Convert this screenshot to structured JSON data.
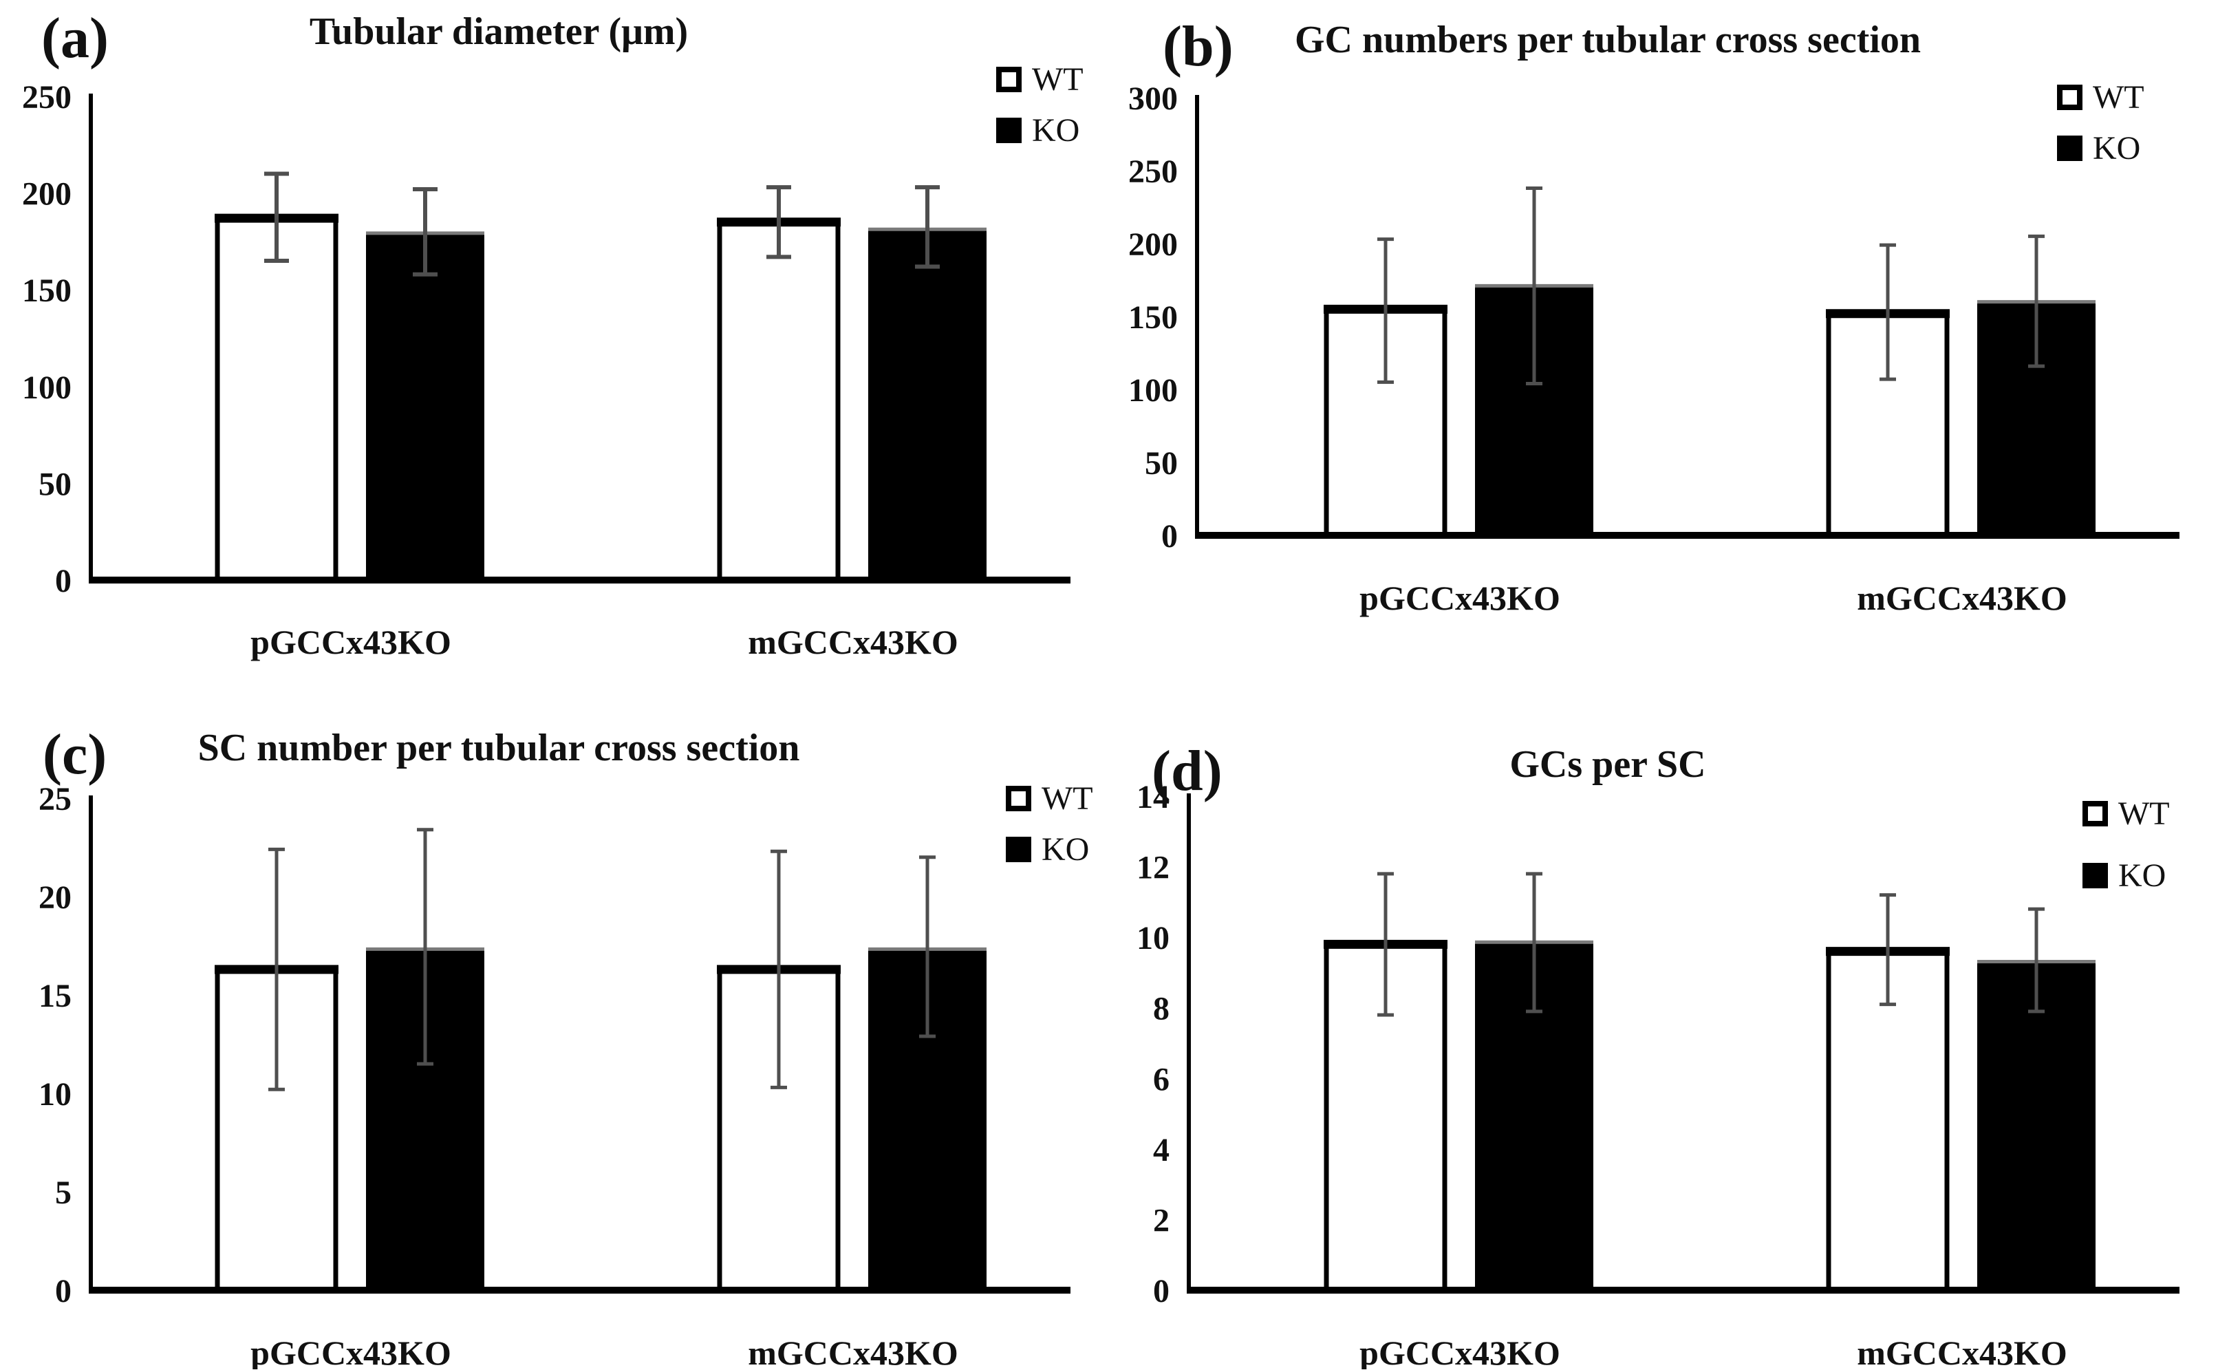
{
  "figure": {
    "description": "Four-panel bar chart figure comparing WT and KO groups in pGCCx43KO and mGCCx43KO testis morphometry",
    "colors": {
      "wt_bar_fill": "#ffffff",
      "ko_bar_fill": "#000000",
      "bar_outline": "#000000",
      "error_bar": "#4f4f4f",
      "ko_bar_top_edge": "#7a7a7a",
      "background": "#ffffff",
      "text": "#111111"
    }
  },
  "chart_data": [
    {
      "type": "bar",
      "panel_letter": "(a)",
      "title": "Tubular diameter (μm)",
      "legend": {
        "wt": "WT",
        "ko": "KO"
      },
      "legend_position": "top-right",
      "grid": false,
      "xlabel": "",
      "ylabel": "",
      "categories": [
        "pGCCx43KO",
        "mGCCx43KO"
      ],
      "series": [
        {
          "name": "WT",
          "style": "open",
          "values": [
            187,
            185
          ],
          "error_low": [
            165,
            167
          ],
          "error_high": [
            210,
            203
          ]
        },
        {
          "name": "KO",
          "style": "filled",
          "values": [
            180,
            182
          ],
          "error_low": [
            158,
            162
          ],
          "error_high": [
            202,
            203
          ]
        }
      ],
      "ylim": [
        0,
        250
      ],
      "yticks": [
        0,
        50,
        100,
        150,
        200,
        250
      ]
    },
    {
      "type": "bar",
      "panel_letter": "(b)",
      "title": "GC numbers per tubular cross section",
      "legend": {
        "wt": "WT",
        "ko": "KO"
      },
      "legend_position": "top-right",
      "grid": false,
      "xlabel": "",
      "ylabel": "",
      "categories": [
        "pGCCx43KO",
        "mGCCx43KO"
      ],
      "series": [
        {
          "name": "WT",
          "style": "open",
          "values": [
            155,
            152
          ],
          "error_low": [
            105,
            107
          ],
          "error_high": [
            203,
            199
          ]
        },
        {
          "name": "KO",
          "style": "filled",
          "values": [
            172,
            161
          ],
          "error_low": [
            104,
            116
          ],
          "error_high": [
            238,
            205
          ]
        }
      ],
      "ylim": [
        0,
        300
      ],
      "yticks": [
        0,
        50,
        100,
        150,
        200,
        250,
        300
      ]
    },
    {
      "type": "bar",
      "panel_letter": "(c)",
      "title": "SC number per tubular cross section",
      "legend": {
        "wt": "WT",
        "ko": "KO"
      },
      "legend_position": "top-right",
      "grid": false,
      "xlabel": "",
      "ylabel": "",
      "categories": [
        "pGCCx43KO",
        "mGCCx43KO"
      ],
      "series": [
        {
          "name": "WT",
          "style": "open",
          "values": [
            16.3,
            16.3
          ],
          "error_low": [
            10.2,
            10.3
          ],
          "error_high": [
            22.4,
            22.3
          ]
        },
        {
          "name": "KO",
          "style": "filled",
          "values": [
            17.4,
            17.4
          ],
          "error_low": [
            11.5,
            12.9
          ],
          "error_high": [
            23.4,
            22.0
          ]
        }
      ],
      "ylim": [
        0,
        25
      ],
      "yticks": [
        0,
        5,
        10,
        15,
        20,
        25
      ]
    },
    {
      "type": "bar",
      "panel_letter": "(d)",
      "title": "GCs per SC",
      "legend": {
        "wt": "WT",
        "ko": "KO"
      },
      "legend_position": "top-right",
      "grid": false,
      "xlabel": "",
      "ylabel": "",
      "categories": [
        "pGCCx43KO",
        "mGCCx43KO"
      ],
      "series": [
        {
          "name": "WT",
          "style": "open",
          "values": [
            9.8,
            9.6
          ],
          "error_low": [
            7.8,
            8.1
          ],
          "error_high": [
            11.8,
            11.2
          ]
        },
        {
          "name": "KO",
          "style": "filled",
          "values": [
            9.9,
            9.35
          ],
          "error_low": [
            7.9,
            7.9
          ],
          "error_high": [
            11.8,
            10.8
          ]
        }
      ],
      "ylim": [
        0,
        14
      ],
      "yticks": [
        0,
        2,
        4,
        6,
        8,
        10,
        12,
        14
      ]
    }
  ]
}
